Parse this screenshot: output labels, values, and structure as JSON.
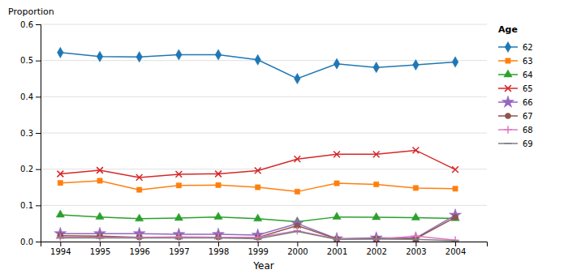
{
  "chart_data": {
    "type": "line",
    "xlabel": "Year",
    "ylabel": "Proportion",
    "legend_title": "Age",
    "x": [
      1994,
      1995,
      1996,
      1997,
      1998,
      1999,
      2000,
      2001,
      2002,
      2003,
      2004
    ],
    "series": [
      {
        "name": "62",
        "marker": "diamond",
        "values": [
          0.522,
          0.511,
          0.51,
          0.516,
          0.516,
          0.502,
          0.45,
          0.491,
          0.481,
          0.488,
          0.496
        ]
      },
      {
        "name": "63",
        "marker": "square",
        "values": [
          0.162,
          0.168,
          0.143,
          0.155,
          0.156,
          0.15,
          0.138,
          0.161,
          0.158,
          0.148,
          0.146
        ]
      },
      {
        "name": "64",
        "marker": "triangle",
        "values": [
          0.074,
          0.068,
          0.063,
          0.065,
          0.068,
          0.063,
          0.055,
          0.068,
          0.067,
          0.066,
          0.064
        ]
      },
      {
        "name": "65",
        "marker": "x",
        "values": [
          0.187,
          0.197,
          0.177,
          0.186,
          0.187,
          0.196,
          0.228,
          0.241,
          0.241,
          0.252,
          0.199
        ]
      },
      {
        "name": "66",
        "marker": "star",
        "values": [
          0.022,
          0.022,
          0.022,
          0.02,
          0.02,
          0.018,
          0.05,
          0.008,
          0.01,
          0.01,
          0.073
        ]
      },
      {
        "name": "67",
        "marker": "circle",
        "values": [
          0.016,
          0.015,
          0.012,
          0.012,
          0.012,
          0.011,
          0.044,
          0.007,
          0.008,
          0.008,
          0.067
        ]
      },
      {
        "name": "68",
        "marker": "plus",
        "values": [
          0.012,
          0.012,
          0.012,
          0.013,
          0.012,
          0.011,
          0.03,
          0.007,
          0.007,
          0.015,
          0.004
        ]
      },
      {
        "name": "69",
        "marker": "hline",
        "values": [
          0.01,
          0.01,
          0.01,
          0.01,
          0.01,
          0.008,
          0.028,
          0.006,
          0.007,
          0.006,
          0.002
        ]
      }
    ],
    "xlim": [
      1993.5,
      2004.8
    ],
    "ylim": [
      0,
      0.6
    ],
    "xticks": [
      1994,
      1995,
      1996,
      1997,
      1998,
      1999,
      2000,
      2001,
      2002,
      2003,
      2004
    ],
    "yticks": [
      {
        "value": 0,
        "label": "0.0"
      },
      0.1,
      0.2,
      0.3,
      0.4,
      0.5,
      0.6
    ],
    "grid": true,
    "legend": "right"
  }
}
